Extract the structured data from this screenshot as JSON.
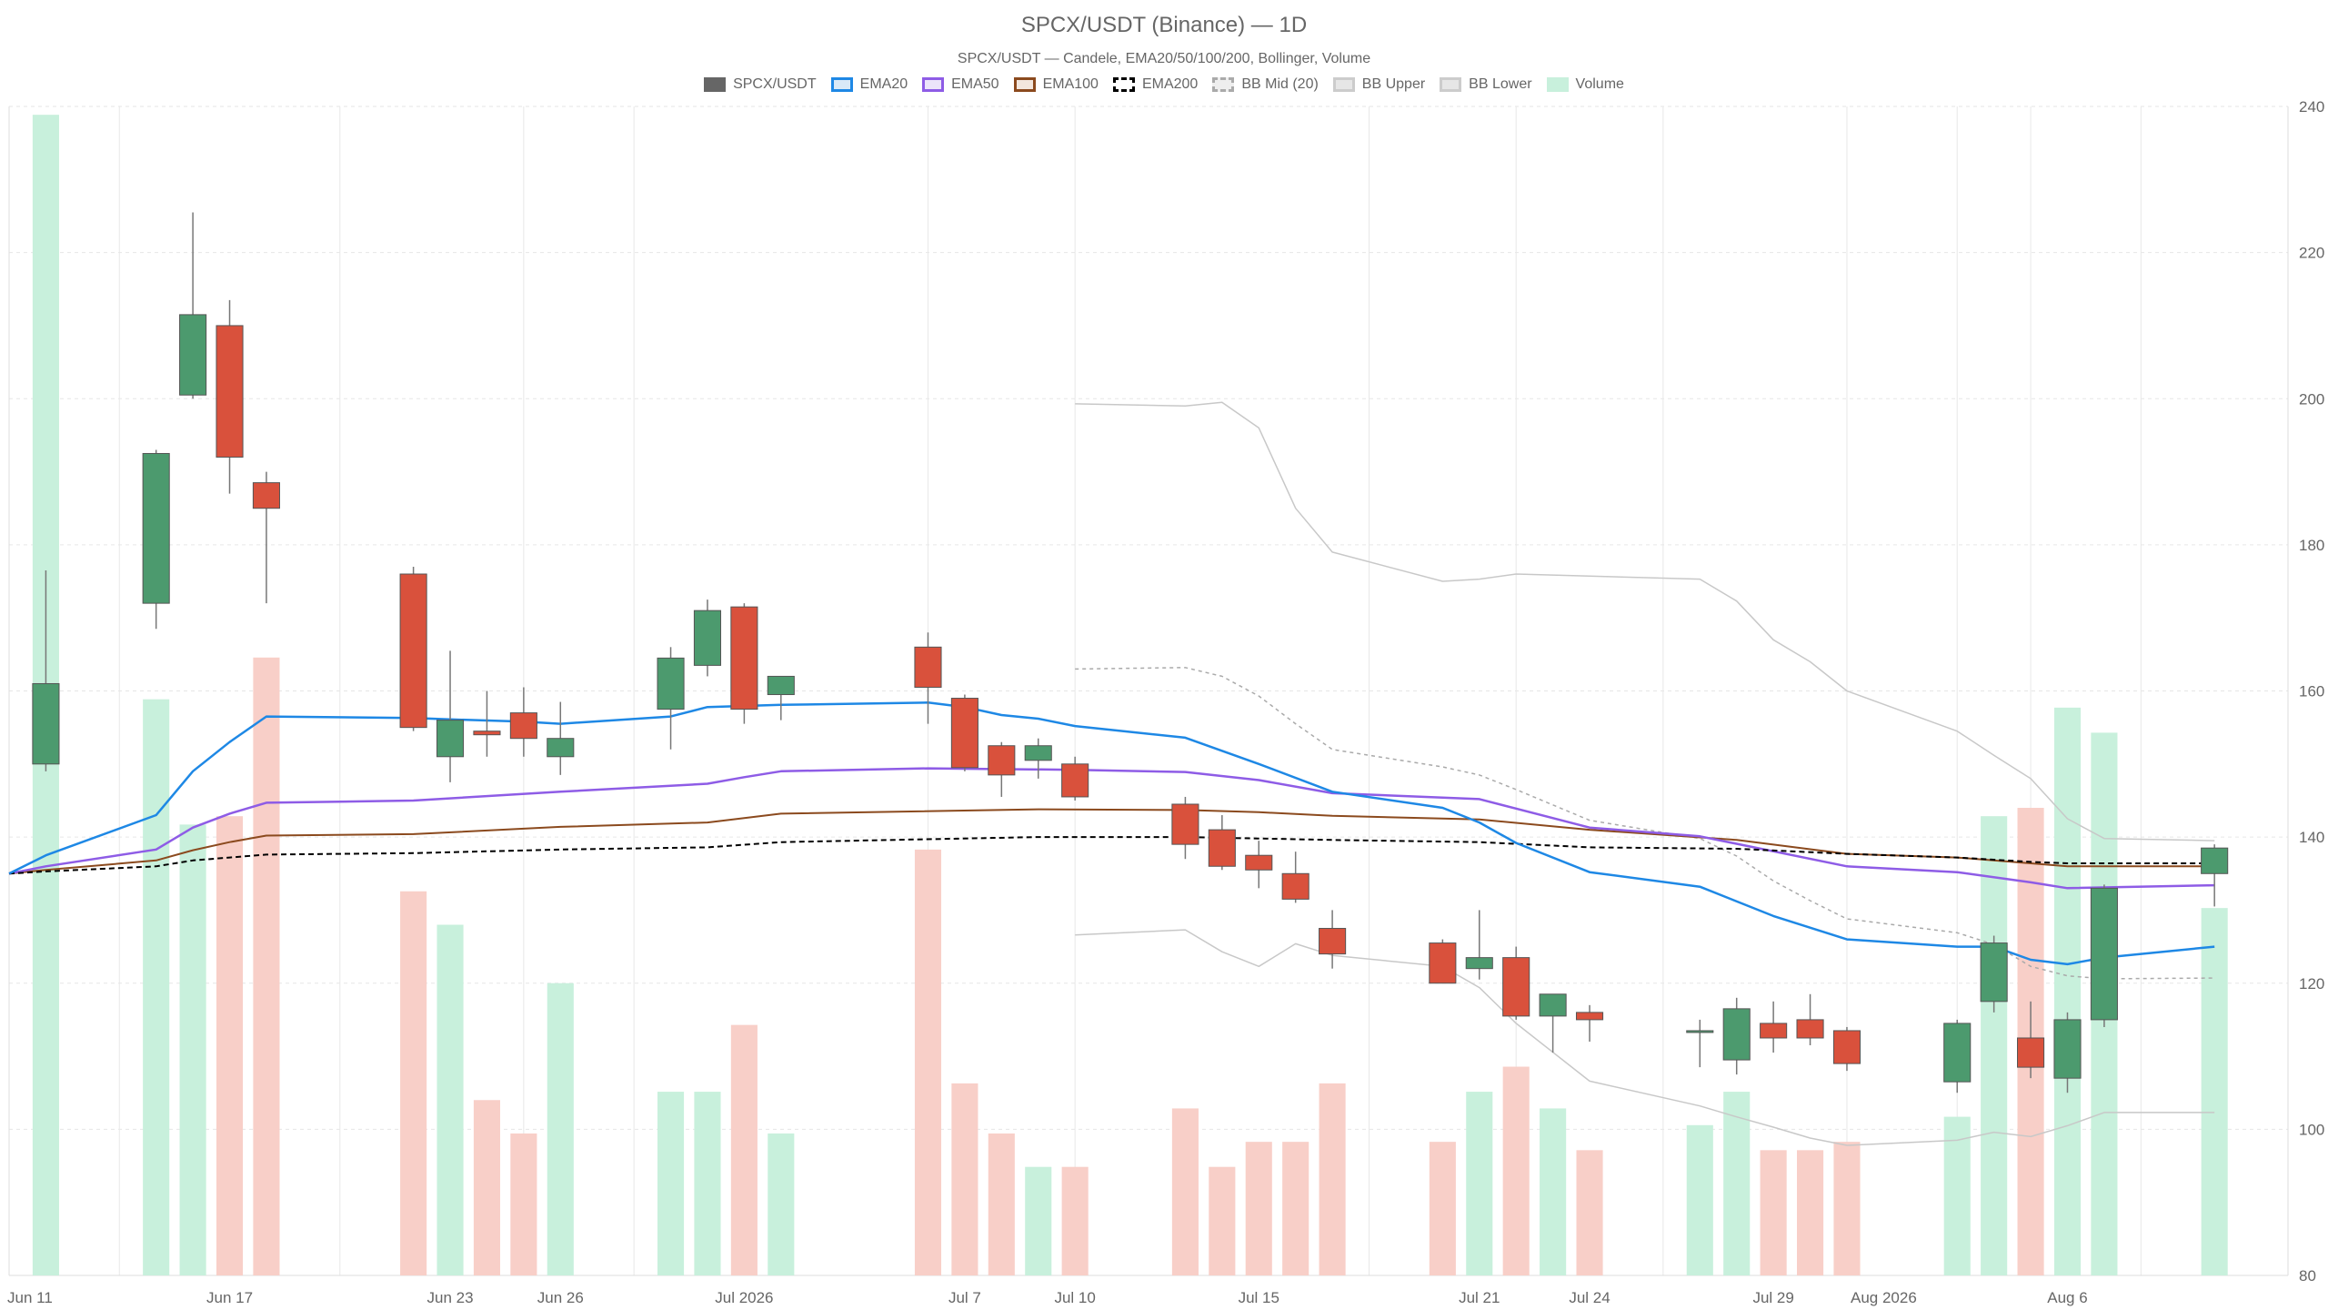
{
  "chart_data": {
    "type": "candlestick",
    "title": "SPCX/USDT (Binance) — 1D",
    "subtitle": "SPCX/USDT — Candele, EMA20/50/100/200, Bollinger, Volume",
    "legend": [
      {
        "name": "SPCX/USDT",
        "color": "#666666",
        "fill": "#666666",
        "style": "solid"
      },
      {
        "name": "EMA20",
        "color": "#1e88e5",
        "fill": "#d9e9f7",
        "style": "solid"
      },
      {
        "name": "EMA50",
        "color": "#8e5ce6",
        "fill": "#ece4fa",
        "style": "solid"
      },
      {
        "name": "EMA100",
        "color": "#8b4a1e",
        "fill": "#f2e6dd",
        "style": "solid"
      },
      {
        "name": "EMA200",
        "color": "#000000",
        "fill": "#ffffff",
        "style": "dashed"
      },
      {
        "name": "BB Mid (20)",
        "color": "#aaaaaa",
        "fill": "#eeeeee",
        "style": "dashed"
      },
      {
        "name": "BB Upper",
        "color": "#cccccc",
        "fill": "#e6e6e6",
        "style": "solid"
      },
      {
        "name": "BB Lower",
        "color": "#cccccc",
        "fill": "#e6e6e6",
        "style": "solid"
      },
      {
        "name": "Volume",
        "color": "#c8f0dc",
        "fill": "#c8f0dc",
        "style": "solid"
      }
    ],
    "y_axis": {
      "min": 80,
      "max": 240,
      "ticks": [
        80,
        100,
        120,
        140,
        160,
        180,
        200,
        220,
        240
      ],
      "position": "right"
    },
    "x_axis": {
      "start": "2026-06-11",
      "end": "2026-08-12",
      "ticks": [
        {
          "date": "2026-06-11",
          "label": "Jun 11"
        },
        {
          "date": "2026-06-17",
          "label": "Jun 17"
        },
        {
          "date": "2026-06-23",
          "label": "Jun 23"
        },
        {
          "date": "2026-06-26",
          "label": "Jun 26"
        },
        {
          "date": "2026-07-01",
          "label": "Jul 2026"
        },
        {
          "date": "2026-07-07",
          "label": "Jul 7"
        },
        {
          "date": "2026-07-10",
          "label": "Jul 10"
        },
        {
          "date": "2026-07-15",
          "label": "Jul 15"
        },
        {
          "date": "2026-07-21",
          "label": "Jul 21"
        },
        {
          "date": "2026-07-24",
          "label": "Jul 24"
        },
        {
          "date": "2026-07-29",
          "label": "Jul 29"
        },
        {
          "date": "2026-08-01",
          "label": "Aug 2026"
        },
        {
          "date": "2026-08-06",
          "label": "Aug 6"
        }
      ]
    },
    "gridlines": {
      "x_dates": [
        "2026-06-14",
        "2026-06-20",
        "2026-06-25",
        "2026-06-28",
        "2026-07-06",
        "2026-07-10",
        "2026-07-18",
        "2026-07-22",
        "2026-07-26",
        "2026-07-31",
        "2026-08-03",
        "2026-08-05",
        "2026-08-08"
      ]
    },
    "colors": {
      "up": "#4c9a6e",
      "down": "#d9513c",
      "vol_up": "#c8f0dc",
      "vol_down": "#f8cfc8",
      "ema20": "#1e88e5",
      "ema50": "#8e5ce6",
      "ema100": "#8b4a1e",
      "ema200": "#000000",
      "bb_band": "#c8c8c8",
      "bb_mid": "#aaaaaa"
    },
    "volume_scale_max": 140,
    "candles": [
      {
        "date": "2026-06-12",
        "open": 150,
        "high": 176.5,
        "low": 149,
        "close": 161,
        "volume": 139
      },
      {
        "date": "2026-06-15",
        "open": 172,
        "high": 193,
        "low": 168.5,
        "close": 192.5,
        "volume": 69
      },
      {
        "date": "2026-06-16",
        "open": 200.5,
        "high": 225.5,
        "low": 200,
        "close": 211.5,
        "volume": 54
      },
      {
        "date": "2026-06-17",
        "open": 210,
        "high": 213.5,
        "low": 187,
        "close": 192,
        "volume": 55
      },
      {
        "date": "2026-06-18",
        "open": 188.5,
        "high": 190,
        "low": 172,
        "close": 185,
        "volume": 74
      },
      {
        "date": "2026-06-22",
        "open": 176,
        "high": 177,
        "low": 154.5,
        "close": 155,
        "volume": 46
      },
      {
        "date": "2026-06-23",
        "open": 151,
        "high": 165.5,
        "low": 147.5,
        "close": 156,
        "volume": 42
      },
      {
        "date": "2026-06-24",
        "open": 154.5,
        "high": 160,
        "low": 151,
        "close": 154,
        "volume": 21
      },
      {
        "date": "2026-06-25",
        "open": 157,
        "high": 160.5,
        "low": 151,
        "close": 153.5,
        "volume": 17
      },
      {
        "date": "2026-06-26",
        "open": 151,
        "high": 158.5,
        "low": 148.5,
        "close": 153.5,
        "volume": 35
      },
      {
        "date": "2026-06-29",
        "open": 157.5,
        "high": 166,
        "low": 152,
        "close": 164.5,
        "volume": 22
      },
      {
        "date": "2026-06-30",
        "open": 163.5,
        "high": 172.5,
        "low": 162,
        "close": 171,
        "volume": 22
      },
      {
        "date": "2026-07-01",
        "open": 171.5,
        "high": 172,
        "low": 155.5,
        "close": 157.5,
        "volume": 30
      },
      {
        "date": "2026-07-02",
        "open": 159.5,
        "high": 162,
        "low": 156,
        "close": 162,
        "volume": 17
      },
      {
        "date": "2026-07-06",
        "open": 166,
        "high": 168,
        "low": 155.5,
        "close": 160.5,
        "volume": 51
      },
      {
        "date": "2026-07-07",
        "open": 159,
        "high": 159.5,
        "low": 149,
        "close": 149.5,
        "volume": 23
      },
      {
        "date": "2026-07-08",
        "open": 152.5,
        "high": 153,
        "low": 145.5,
        "close": 148.5,
        "volume": 17
      },
      {
        "date": "2026-07-09",
        "open": 150.5,
        "high": 153.5,
        "low": 148,
        "close": 152.5,
        "volume": 13
      },
      {
        "date": "2026-07-10",
        "open": 150,
        "high": 151,
        "low": 145,
        "close": 145.5,
        "volume": 13
      },
      {
        "date": "2026-07-13",
        "open": 144.5,
        "high": 145.5,
        "low": 137,
        "close": 139,
        "volume": 20
      },
      {
        "date": "2026-07-14",
        "open": 141,
        "high": 143,
        "low": 135.5,
        "close": 136,
        "volume": 13
      },
      {
        "date": "2026-07-15",
        "open": 137.5,
        "high": 139.5,
        "low": 133,
        "close": 135.5,
        "volume": 16
      },
      {
        "date": "2026-07-16",
        "open": 135,
        "high": 138,
        "low": 131,
        "close": 131.5,
        "volume": 16
      },
      {
        "date": "2026-07-17",
        "open": 127.5,
        "high": 130,
        "low": 122,
        "close": 124,
        "volume": 23
      },
      {
        "date": "2026-07-20",
        "open": 125.5,
        "high": 126,
        "low": 120,
        "close": 120,
        "volume": 16
      },
      {
        "date": "2026-07-21",
        "open": 122,
        "high": 130,
        "low": 120.5,
        "close": 123.5,
        "volume": 22
      },
      {
        "date": "2026-07-22",
        "open": 123.5,
        "high": 125,
        "low": 115,
        "close": 115.5,
        "volume": 25
      },
      {
        "date": "2026-07-23",
        "open": 115.5,
        "high": 118.5,
        "low": 110.5,
        "close": 118.5,
        "volume": 20
      },
      {
        "date": "2026-07-24",
        "open": 116,
        "high": 117,
        "low": 112,
        "close": 115,
        "volume": 15
      },
      {
        "date": "2026-07-27",
        "open": 113.5,
        "high": 115,
        "low": 108.5,
        "close": 113.5,
        "volume": 18
      },
      {
        "date": "2026-07-28",
        "open": 109.5,
        "high": 118,
        "low": 107.5,
        "close": 116.5,
        "volume": 22
      },
      {
        "date": "2026-07-29",
        "open": 114.5,
        "high": 117.5,
        "low": 110.5,
        "close": 112.5,
        "volume": 15
      },
      {
        "date": "2026-07-30",
        "open": 115,
        "high": 118.5,
        "low": 111.5,
        "close": 112.5,
        "volume": 15
      },
      {
        "date": "2026-07-31",
        "open": 113.5,
        "high": 114,
        "low": 108,
        "close": 109,
        "volume": 16
      },
      {
        "date": "2026-08-03",
        "open": 106.5,
        "high": 115,
        "low": 105,
        "close": 114.5,
        "volume": 19
      },
      {
        "date": "2026-08-04",
        "open": 117.5,
        "high": 126.5,
        "low": 116,
        "close": 125.5,
        "volume": 55
      },
      {
        "date": "2026-08-05",
        "open": 112.5,
        "high": 117.5,
        "low": 107,
        "close": 108.5,
        "volume": 56
      },
      {
        "date": "2026-08-06",
        "open": 107,
        "high": 116,
        "low": 105,
        "close": 115,
        "volume": 68
      },
      {
        "date": "2026-08-07",
        "open": 115,
        "high": 133.5,
        "low": 114,
        "close": 133,
        "volume": 65
      },
      {
        "date": "2026-08-10",
        "open": 135,
        "high": 139,
        "low": 130.5,
        "close": 138.5,
        "volume": 44
      }
    ],
    "ema20": [
      [
        "2026-06-11",
        135
      ],
      [
        "2026-06-12",
        137.5
      ],
      [
        "2026-06-15",
        143
      ],
      [
        "2026-06-16",
        149
      ],
      [
        "2026-06-17",
        153
      ],
      [
        "2026-06-18",
        156.5
      ],
      [
        "2026-06-22",
        156.3
      ],
      [
        "2026-06-23",
        156.1
      ],
      [
        "2026-06-25",
        155.8
      ],
      [
        "2026-06-26",
        155.5
      ],
      [
        "2026-06-29",
        156.5
      ],
      [
        "2026-06-30",
        157.8
      ],
      [
        "2026-07-02",
        158.1
      ],
      [
        "2026-07-06",
        158.4
      ],
      [
        "2026-07-07",
        157.8
      ],
      [
        "2026-07-08",
        156.7
      ],
      [
        "2026-07-09",
        156.2
      ],
      [
        "2026-07-10",
        155.2
      ],
      [
        "2026-07-13",
        153.6
      ],
      [
        "2026-07-15",
        150
      ],
      [
        "2026-07-17",
        146.2
      ],
      [
        "2026-07-20",
        144
      ],
      [
        "2026-07-21",
        142
      ],
      [
        "2026-07-22",
        139.2
      ],
      [
        "2026-07-24",
        135.2
      ],
      [
        "2026-07-27",
        133.2
      ],
      [
        "2026-07-29",
        129.2
      ],
      [
        "2026-07-31",
        126
      ],
      [
        "2026-08-03",
        125
      ],
      [
        "2026-08-04",
        125
      ],
      [
        "2026-08-05",
        123.2
      ],
      [
        "2026-08-06",
        122.6
      ],
      [
        "2026-08-07",
        123.5
      ],
      [
        "2026-08-10",
        125
      ]
    ],
    "ema50": [
      [
        "2026-06-11",
        135
      ],
      [
        "2026-06-12",
        136
      ],
      [
        "2026-06-15",
        138.3
      ],
      [
        "2026-06-16",
        141.3
      ],
      [
        "2026-06-17",
        143.2
      ],
      [
        "2026-06-18",
        144.7
      ],
      [
        "2026-06-22",
        145
      ],
      [
        "2026-06-26",
        146.2
      ],
      [
        "2026-06-30",
        147.3
      ],
      [
        "2026-07-01",
        148.2
      ],
      [
        "2026-07-02",
        149
      ],
      [
        "2026-07-06",
        149.4
      ],
      [
        "2026-07-10",
        149.2
      ],
      [
        "2026-07-13",
        148.9
      ],
      [
        "2026-07-15",
        147.8
      ],
      [
        "2026-07-17",
        146
      ],
      [
        "2026-07-21",
        145.2
      ],
      [
        "2026-07-24",
        141.3
      ],
      [
        "2026-07-27",
        140.1
      ],
      [
        "2026-07-31",
        136
      ],
      [
        "2026-08-03",
        135.2
      ],
      [
        "2026-08-05",
        133.8
      ],
      [
        "2026-08-06",
        133
      ],
      [
        "2026-08-10",
        133.4
      ]
    ],
    "ema100": [
      [
        "2026-06-11",
        135
      ],
      [
        "2026-06-12",
        135.5
      ],
      [
        "2026-06-15",
        136.8
      ],
      [
        "2026-06-16",
        138.2
      ],
      [
        "2026-06-17",
        139.3
      ],
      [
        "2026-06-18",
        140.2
      ],
      [
        "2026-06-22",
        140.4
      ],
      [
        "2026-06-26",
        141.4
      ],
      [
        "2026-06-30",
        142
      ],
      [
        "2026-07-02",
        143.2
      ],
      [
        "2026-07-09",
        143.8
      ],
      [
        "2026-07-13",
        143.7
      ],
      [
        "2026-07-15",
        143.4
      ],
      [
        "2026-07-17",
        142.9
      ],
      [
        "2026-07-21",
        142.4
      ],
      [
        "2026-07-24",
        141
      ],
      [
        "2026-07-28",
        139.6
      ],
      [
        "2026-07-31",
        137.7
      ],
      [
        "2026-08-03",
        137.2
      ],
      [
        "2026-08-05",
        136.4
      ],
      [
        "2026-08-06",
        136
      ],
      [
        "2026-08-10",
        136
      ]
    ],
    "ema200": [
      [
        "2026-06-11",
        135
      ],
      [
        "2026-06-12",
        135.3
      ],
      [
        "2026-06-15",
        136
      ],
      [
        "2026-06-16",
        136.8
      ],
      [
        "2026-06-17",
        137.2
      ],
      [
        "2026-06-18",
        137.6
      ],
      [
        "2026-06-22",
        137.8
      ],
      [
        "2026-06-26",
        138.3
      ],
      [
        "2026-06-30",
        138.6
      ],
      [
        "2026-07-02",
        139.3
      ],
      [
        "2026-07-09",
        140
      ],
      [
        "2026-07-13",
        140
      ],
      [
        "2026-07-17",
        139.6
      ],
      [
        "2026-07-21",
        139.3
      ],
      [
        "2026-07-24",
        138.6
      ],
      [
        "2026-07-28",
        138.4
      ],
      [
        "2026-07-31",
        137.7
      ],
      [
        "2026-08-03",
        137.2
      ],
      [
        "2026-08-05",
        136.6
      ],
      [
        "2026-08-06",
        136.4
      ],
      [
        "2026-08-10",
        136.4
      ]
    ],
    "bb_upper": [
      [
        "2026-07-10",
        199.3
      ],
      [
        "2026-07-13",
        199
      ],
      [
        "2026-07-14",
        199.5
      ],
      [
        "2026-07-15",
        196
      ],
      [
        "2026-07-16",
        185
      ],
      [
        "2026-07-17",
        179
      ],
      [
        "2026-07-20",
        175
      ],
      [
        "2026-07-21",
        175.3
      ],
      [
        "2026-07-22",
        176
      ],
      [
        "2026-07-27",
        175.3
      ],
      [
        "2026-07-28",
        172.3
      ],
      [
        "2026-07-29",
        167
      ],
      [
        "2026-07-30",
        164
      ],
      [
        "2026-07-31",
        160
      ],
      [
        "2026-08-03",
        154.5
      ],
      [
        "2026-08-04",
        151.2
      ],
      [
        "2026-08-05",
        148
      ],
      [
        "2026-08-06",
        142.5
      ],
      [
        "2026-08-07",
        139.8
      ],
      [
        "2026-08-10",
        139.5
      ]
    ],
    "bb_mid": [
      [
        "2026-07-10",
        163
      ],
      [
        "2026-07-13",
        163.2
      ],
      [
        "2026-07-14",
        162
      ],
      [
        "2026-07-15",
        159.3
      ],
      [
        "2026-07-16",
        155.5
      ],
      [
        "2026-07-17",
        152
      ],
      [
        "2026-07-20",
        149.6
      ],
      [
        "2026-07-21",
        148.5
      ],
      [
        "2026-07-22",
        146.5
      ],
      [
        "2026-07-24",
        142.3
      ],
      [
        "2026-07-27",
        139.8
      ],
      [
        "2026-07-28",
        137.4
      ],
      [
        "2026-07-29",
        134
      ],
      [
        "2026-07-30",
        131.3
      ],
      [
        "2026-07-31",
        128.8
      ],
      [
        "2026-08-03",
        126.9
      ],
      [
        "2026-08-04",
        125.3
      ],
      [
        "2026-08-05",
        122.3
      ],
      [
        "2026-08-06",
        121
      ],
      [
        "2026-08-07",
        120.6
      ],
      [
        "2026-08-10",
        120.7
      ]
    ],
    "bb_lower": [
      [
        "2026-07-10",
        126.6
      ],
      [
        "2026-07-13",
        127.3
      ],
      [
        "2026-07-14",
        124.3
      ],
      [
        "2026-07-15",
        122.3
      ],
      [
        "2026-07-16",
        125.4
      ],
      [
        "2026-07-17",
        123.8
      ],
      [
        "2026-07-20",
        122.3
      ],
      [
        "2026-07-21",
        119.4
      ],
      [
        "2026-07-22",
        114.5
      ],
      [
        "2026-07-24",
        106.6
      ],
      [
        "2026-07-27",
        103.2
      ],
      [
        "2026-07-28",
        101.7
      ],
      [
        "2026-07-29",
        100.3
      ],
      [
        "2026-07-30",
        98.8
      ],
      [
        "2026-07-31",
        97.8
      ],
      [
        "2026-08-03",
        98.5
      ],
      [
        "2026-08-04",
        99.6
      ],
      [
        "2026-08-05",
        99
      ],
      [
        "2026-08-06",
        100.5
      ],
      [
        "2026-08-07",
        102.3
      ],
      [
        "2026-08-10",
        102.3
      ]
    ]
  }
}
